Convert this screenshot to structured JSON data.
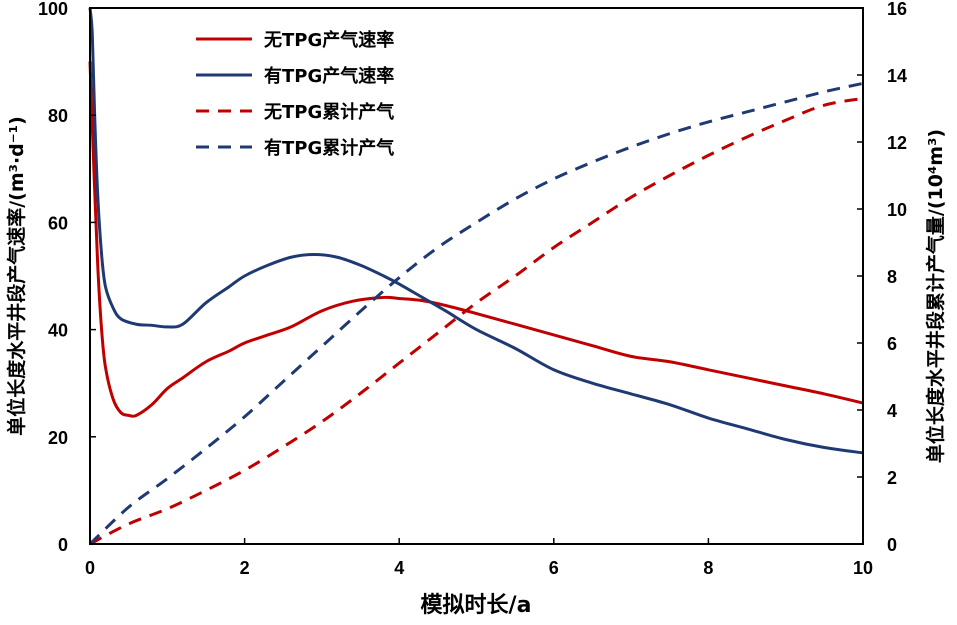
{
  "chart_data": {
    "type": "line",
    "xlabel": "模拟时长/a",
    "ylabel_left": "单位长度水平井段产气速率/(m³·d⁻¹)",
    "ylabel_right": "单位长度水平井段累计产气量/(10⁴m³)",
    "xlim": [
      0,
      10
    ],
    "ylim_left": [
      0,
      100
    ],
    "ylim_right": [
      0,
      16
    ],
    "x_ticks": [
      0,
      2,
      4,
      6,
      8,
      10
    ],
    "y_ticks_left": [
      0,
      20,
      40,
      60,
      80,
      100
    ],
    "y_ticks_right": [
      0,
      2,
      4,
      6,
      8,
      10,
      12,
      14,
      16
    ],
    "grid": false,
    "legend_position": "top-left",
    "series": [
      {
        "name": "无TPG产气速率",
        "axis": "left",
        "style": "solid",
        "color": "#c00000",
        "x": [
          0,
          0.05,
          0.1,
          0.15,
          0.2,
          0.3,
          0.4,
          0.5,
          0.6,
          0.8,
          1.0,
          1.2,
          1.5,
          1.8,
          2.0,
          2.3,
          2.6,
          3.0,
          3.4,
          3.8,
          4.0,
          4.3,
          4.6,
          5.0,
          5.5,
          6.0,
          6.5,
          7.0,
          7.5,
          8.0,
          8.5,
          9.0,
          9.5,
          10.0
        ],
        "y": [
          90,
          70,
          52,
          40,
          33,
          27,
          24.5,
          24,
          24,
          26,
          29,
          31,
          34,
          36,
          37.5,
          39,
          40.5,
          43.5,
          45.3,
          46,
          45.8,
          45.4,
          44.5,
          43,
          41,
          39,
          37,
          35,
          34,
          32.5,
          31,
          29.5,
          28,
          26.3
        ]
      },
      {
        "name": "有TPG产气速率",
        "axis": "left",
        "style": "solid",
        "color": "#1f3a73",
        "x": [
          0,
          0.03,
          0.06,
          0.1,
          0.15,
          0.2,
          0.3,
          0.4,
          0.6,
          0.8,
          1.0,
          1.2,
          1.5,
          1.8,
          2.0,
          2.3,
          2.6,
          2.9,
          3.2,
          3.5,
          3.8,
          4.0,
          4.3,
          4.6,
          5.0,
          5.5,
          6.0,
          6.5,
          7.0,
          7.5,
          8.0,
          8.5,
          9.0,
          9.5,
          10.0
        ],
        "y": [
          100,
          95,
          80,
          65,
          54,
          48,
          44,
          42,
          41,
          40.8,
          40.5,
          41,
          45,
          48,
          50,
          52,
          53.5,
          54,
          53.5,
          52,
          50,
          48.5,
          46,
          43.5,
          40,
          36.5,
          32.5,
          30,
          28,
          26,
          23.5,
          21.5,
          19.5,
          18,
          17
        ]
      },
      {
        "name": "无TPG累计产气",
        "axis": "right",
        "style": "dashed",
        "color": "#c00000",
        "x": [
          0,
          0.5,
          1,
          1.5,
          2,
          2.5,
          3,
          3.5,
          4,
          4.5,
          5,
          5.5,
          6,
          6.5,
          7,
          7.5,
          8,
          8.5,
          9,
          9.5,
          10
        ],
        "y": [
          0,
          0.6,
          1.05,
          1.6,
          2.2,
          2.9,
          3.65,
          4.5,
          5.4,
          6.3,
          7.2,
          8.0,
          8.85,
          9.6,
          10.35,
          11.0,
          11.6,
          12.15,
          12.65,
          13.1,
          13.3
        ]
      },
      {
        "name": "有TPG累计产气",
        "axis": "right",
        "style": "dashed",
        "color": "#1f3a73",
        "x": [
          0,
          0.5,
          1,
          1.5,
          2,
          2.5,
          3,
          3.5,
          4,
          4.5,
          5,
          5.5,
          6,
          6.5,
          7,
          7.5,
          8,
          8.5,
          9,
          9.5,
          10
        ],
        "y": [
          0,
          1.1,
          1.95,
          2.85,
          3.8,
          4.85,
          5.9,
          6.95,
          7.95,
          8.85,
          9.6,
          10.3,
          10.9,
          11.4,
          11.85,
          12.25,
          12.6,
          12.9,
          13.2,
          13.5,
          13.75
        ]
      }
    ]
  }
}
